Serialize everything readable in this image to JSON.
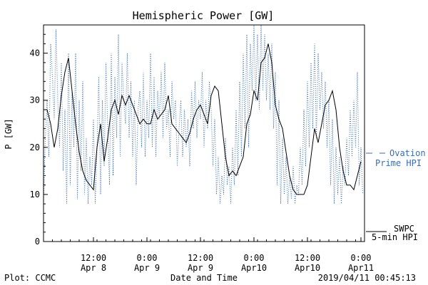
{
  "chart_data": {
    "type": "line",
    "title": "Hemispheric Power [GW]",
    "ylabel": "P [GW]",
    "xlabel": "Date and Time",
    "ylim": [
      0,
      46
    ],
    "xlim": [
      0,
      90
    ],
    "yticks": [
      0,
      10,
      20,
      30,
      40
    ],
    "xticks": [
      {
        "x": 14,
        "line1": "12:00",
        "line2": "Apr 8"
      },
      {
        "x": 29,
        "line1": "0:00",
        "line2": "Apr 9"
      },
      {
        "x": 44,
        "line1": "12:00",
        "line2": "Apr 9"
      },
      {
        "x": 59,
        "line1": "0:00",
        "line2": "Apr10"
      },
      {
        "x": 74,
        "line1": "12:00",
        "line2": "Apr10"
      },
      {
        "x": 89,
        "line1": "0:00",
        "line2": "Apr11"
      }
    ],
    "series": [
      {
        "name": "SWPC 5-min HPI",
        "color": "#000000",
        "style": "solid",
        "points": [
          [
            0,
            28
          ],
          [
            1,
            28
          ],
          [
            2,
            25
          ],
          [
            3,
            20
          ],
          [
            4,
            24
          ],
          [
            5,
            31
          ],
          [
            6,
            36
          ],
          [
            7,
            39
          ],
          [
            8,
            32
          ],
          [
            9,
            25
          ],
          [
            10,
            19
          ],
          [
            11,
            15
          ],
          [
            12,
            13
          ],
          [
            13,
            12
          ],
          [
            14,
            11
          ],
          [
            15,
            20
          ],
          [
            16,
            25
          ],
          [
            17,
            17
          ],
          [
            18,
            22
          ],
          [
            19,
            28
          ],
          [
            20,
            30
          ],
          [
            21,
            27
          ],
          [
            22,
            31
          ],
          [
            23,
            29
          ],
          [
            24,
            31
          ],
          [
            25,
            29
          ],
          [
            26,
            27
          ],
          [
            27,
            25
          ],
          [
            28,
            26
          ],
          [
            29,
            25
          ],
          [
            30,
            25
          ],
          [
            31,
            28
          ],
          [
            32,
            26
          ],
          [
            33,
            27
          ],
          [
            34,
            28
          ],
          [
            35,
            31
          ],
          [
            36,
            25
          ],
          [
            37,
            24
          ],
          [
            38,
            23
          ],
          [
            39,
            22
          ],
          [
            40,
            21
          ],
          [
            41,
            23
          ],
          [
            42,
            26
          ],
          [
            43,
            28
          ],
          [
            44,
            29
          ],
          [
            45,
            27
          ],
          [
            46,
            25
          ],
          [
            47,
            31
          ],
          [
            48,
            33
          ],
          [
            49,
            32
          ],
          [
            50,
            25
          ],
          [
            51,
            18
          ],
          [
            52,
            14
          ],
          [
            53,
            15
          ],
          [
            54,
            14
          ],
          [
            55,
            16
          ],
          [
            56,
            18
          ],
          [
            57,
            25
          ],
          [
            58,
            27
          ],
          [
            59,
            32
          ],
          [
            60,
            30
          ],
          [
            61,
            38
          ],
          [
            62,
            39
          ],
          [
            63,
            42
          ],
          [
            64,
            38
          ],
          [
            65,
            29
          ],
          [
            66,
            26
          ],
          [
            67,
            24
          ],
          [
            68,
            19
          ],
          [
            69,
            14
          ],
          [
            70,
            11
          ],
          [
            71,
            10
          ],
          [
            72,
            10
          ],
          [
            73,
            10
          ],
          [
            74,
            12
          ],
          [
            75,
            18
          ],
          [
            76,
            24
          ],
          [
            77,
            21
          ],
          [
            78,
            25
          ],
          [
            79,
            29
          ],
          [
            80,
            30
          ],
          [
            81,
            32
          ],
          [
            82,
            28
          ],
          [
            83,
            20
          ],
          [
            84,
            15
          ],
          [
            85,
            12
          ],
          [
            86,
            12
          ],
          [
            87,
            11
          ],
          [
            88,
            14
          ],
          [
            89,
            17
          ]
        ]
      },
      {
        "name": "Ovation Prime HPI",
        "color": "#3a6db5",
        "style": "dotted",
        "points": [
          [
            0,
            8
          ],
          [
            0.5,
            22
          ],
          [
            1,
            30
          ],
          [
            1.5,
            18
          ],
          [
            2,
            42
          ],
          [
            2.5,
            35
          ],
          [
            3,
            26
          ],
          [
            3.5,
            45
          ],
          [
            4,
            30
          ],
          [
            4.5,
            20
          ],
          [
            5,
            38
          ],
          [
            5.5,
            15
          ],
          [
            6,
            28
          ],
          [
            6.5,
            8
          ],
          [
            7,
            40
          ],
          [
            7.5,
            12
          ],
          [
            8,
            32
          ],
          [
            8.5,
            20
          ],
          [
            9,
            40
          ],
          [
            9.5,
            9
          ],
          [
            10,
            30
          ],
          [
            10.5,
            15
          ],
          [
            11,
            34
          ],
          [
            11.5,
            10
          ],
          [
            12,
            22
          ],
          [
            12.5,
            8
          ],
          [
            13,
            18
          ],
          [
            13.5,
            12
          ],
          [
            14,
            26
          ],
          [
            14.5,
            8
          ],
          [
            15,
            20
          ],
          [
            15.5,
            35
          ],
          [
            16,
            10
          ],
          [
            16.5,
            30
          ],
          [
            17,
            16
          ],
          [
            17.5,
            38
          ],
          [
            18,
            24
          ],
          [
            18.5,
            12
          ],
          [
            19,
            40
          ],
          [
            19.5,
            14
          ],
          [
            20,
            35
          ],
          [
            20.5,
            22
          ],
          [
            21,
            44
          ],
          [
            21.5,
            18
          ],
          [
            22,
            38
          ],
          [
            22.5,
            30
          ],
          [
            23,
            25
          ],
          [
            23.5,
            40
          ],
          [
            24,
            22
          ],
          [
            24.5,
            34
          ],
          [
            25,
            18
          ],
          [
            25.5,
            30
          ],
          [
            26,
            12
          ],
          [
            26.5,
            28
          ],
          [
            27,
            32
          ],
          [
            27.5,
            20
          ],
          [
            28,
            36
          ],
          [
            28.5,
            18
          ],
          [
            29,
            30
          ],
          [
            29.5,
            22
          ],
          [
            30,
            40
          ],
          [
            30.5,
            20
          ],
          [
            31,
            35
          ],
          [
            31.5,
            18
          ],
          [
            32,
            32
          ],
          [
            32.5,
            26
          ],
          [
            33,
            36
          ],
          [
            33.5,
            22
          ],
          [
            34,
            38
          ],
          [
            34.5,
            24
          ],
          [
            35,
            28
          ],
          [
            35.5,
            18
          ],
          [
            36,
            34
          ],
          [
            36.5,
            26
          ],
          [
            37,
            30
          ],
          [
            37.5,
            16
          ],
          [
            38,
            24
          ],
          [
            38.5,
            30
          ],
          [
            39,
            18
          ],
          [
            39.5,
            28
          ],
          [
            40,
            20
          ],
          [
            40.5,
            26
          ],
          [
            41,
            16
          ],
          [
            41.5,
            32
          ],
          [
            42,
            24
          ],
          [
            42.5,
            34
          ],
          [
            43,
            22
          ],
          [
            43.5,
            30
          ],
          [
            44,
            26
          ],
          [
            44.5,
            36
          ],
          [
            45,
            20
          ],
          [
            45.5,
            30
          ],
          [
            46,
            24
          ],
          [
            46.5,
            34
          ],
          [
            47,
            28
          ],
          [
            47.5,
            16
          ],
          [
            48,
            26
          ],
          [
            48.5,
            10
          ],
          [
            49,
            18
          ],
          [
            49.5,
            8
          ],
          [
            50,
            14
          ],
          [
            50.5,
            10
          ],
          [
            51,
            22
          ],
          [
            51.5,
            12
          ],
          [
            52,
            16
          ],
          [
            52.5,
            8
          ],
          [
            53,
            20
          ],
          [
            53.5,
            12
          ],
          [
            54,
            28
          ],
          [
            54.5,
            14
          ],
          [
            55,
            34
          ],
          [
            55.5,
            18
          ],
          [
            56,
            40
          ],
          [
            56.5,
            24
          ],
          [
            57,
            44
          ],
          [
            57.5,
            20
          ],
          [
            58,
            42
          ],
          [
            58.5,
            32
          ],
          [
            59,
            46
          ],
          [
            59.5,
            30
          ],
          [
            60,
            44
          ],
          [
            60.5,
            28
          ],
          [
            61,
            46
          ],
          [
            61.5,
            32
          ],
          [
            62,
            44
          ],
          [
            62.5,
            30
          ],
          [
            63,
            40
          ],
          [
            63.5,
            28
          ],
          [
            64,
            42
          ],
          [
            64.5,
            24
          ],
          [
            65,
            36
          ],
          [
            65.5,
            12
          ],
          [
            66,
            30
          ],
          [
            66.5,
            8
          ],
          [
            67,
            22
          ],
          [
            67.5,
            10
          ],
          [
            68,
            18
          ],
          [
            68.5,
            8
          ],
          [
            69,
            14
          ],
          [
            69.5,
            9
          ],
          [
            70,
            16
          ],
          [
            70.5,
            8
          ],
          [
            71,
            12
          ],
          [
            71.5,
            10
          ],
          [
            72,
            20
          ],
          [
            72.5,
            12
          ],
          [
            73,
            28
          ],
          [
            73.5,
            16
          ],
          [
            74,
            34
          ],
          [
            74.5,
            20
          ],
          [
            75,
            38
          ],
          [
            75.5,
            24
          ],
          [
            76,
            42
          ],
          [
            76.5,
            22
          ],
          [
            77,
            40
          ],
          [
            77.5,
            28
          ],
          [
            78,
            36
          ],
          [
            78.5,
            24
          ],
          [
            79,
            34
          ],
          [
            79.5,
            20
          ],
          [
            80,
            30
          ],
          [
            80.5,
            12
          ],
          [
            81,
            26
          ],
          [
            81.5,
            8
          ],
          [
            82,
            20
          ],
          [
            82.5,
            10
          ],
          [
            83,
            18
          ],
          [
            83.5,
            8
          ],
          [
            84,
            16
          ],
          [
            84.5,
            12
          ],
          [
            85,
            22
          ],
          [
            85.5,
            14
          ],
          [
            86,
            28
          ],
          [
            86.5,
            18
          ],
          [
            87,
            30
          ],
          [
            87.5,
            20
          ],
          [
            88,
            36
          ],
          [
            88.5,
            12
          ],
          [
            89,
            20
          ],
          [
            89.5,
            10
          ]
        ]
      }
    ],
    "legend": {
      "placement": "right",
      "ovation_line1": "Ovation",
      "ovation_line2": "Prime HPI",
      "swpc_line1": "SWPC",
      "swpc_line2": "5-min HPI"
    }
  },
  "footer": {
    "left": "Plot: CCMC",
    "center": "Date and Time",
    "right": "2019/04/11 00:45:13"
  }
}
